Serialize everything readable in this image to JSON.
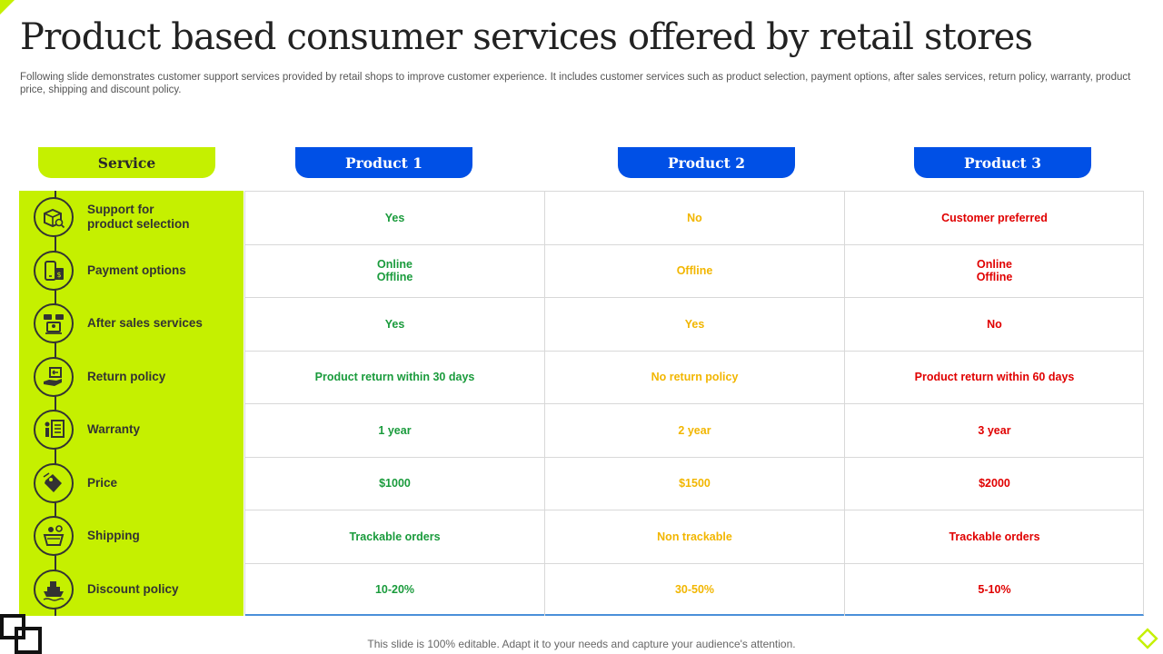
{
  "page": {
    "title": "Product based consumer services offered by retail stores",
    "subtitle": "Following slide demonstrates customer support services provided by retail shops to improve customer experience. It includes customer services such as product selection, payment options, after sales services, return policy, warranty, product price, shipping and discount policy.",
    "footer": "This slide is 100% editable. Adapt it to your needs and capture your audience's attention."
  },
  "colors": {
    "accent_lime": "#c5f000",
    "header_blue": "#0050e6",
    "product1_text": "#1a9b3c",
    "product2_text": "#f2b600",
    "product3_text": "#e00000"
  },
  "table": {
    "headers": [
      "Service",
      "Product 1",
      "Product 2",
      "Product 3"
    ],
    "rows": [
      {
        "service": "Support for\nproduct selection",
        "icon": "box-search-icon",
        "p1": "Yes",
        "p2": "No",
        "p3": "Customer preferred"
      },
      {
        "service": "Payment options",
        "icon": "mobile-payment-icon",
        "p1": "Online\nOffline",
        "p2": "Offline",
        "p3": "Online\nOffline"
      },
      {
        "service": "After sales services",
        "icon": "support-chat-icon",
        "p1": "Yes",
        "p2": "Yes",
        "p3": "No"
      },
      {
        "service": "Return policy",
        "icon": "return-hand-icon",
        "p1": "Product return within 30 days",
        "p2": "No return policy",
        "p3": "Product return within 60 days"
      },
      {
        "service": "Warranty",
        "icon": "warranty-card-icon",
        "p1": "1 year",
        "p2": "2 year",
        "p3": "3 year"
      },
      {
        "service": "Price",
        "icon": "price-tag-icon",
        "p1": "$1000",
        "p2": "$1500",
        "p3": "$2000"
      },
      {
        "service": "Shipping",
        "icon": "shipping-basket-icon",
        "p1": "Trackable orders",
        "p2": "Non trackable",
        "p3": "Trackable orders"
      },
      {
        "service": "Discount policy",
        "icon": "discount-ship-icon",
        "p1": "10-20%",
        "p2": "30-50%",
        "p3": "5-10%"
      }
    ]
  }
}
